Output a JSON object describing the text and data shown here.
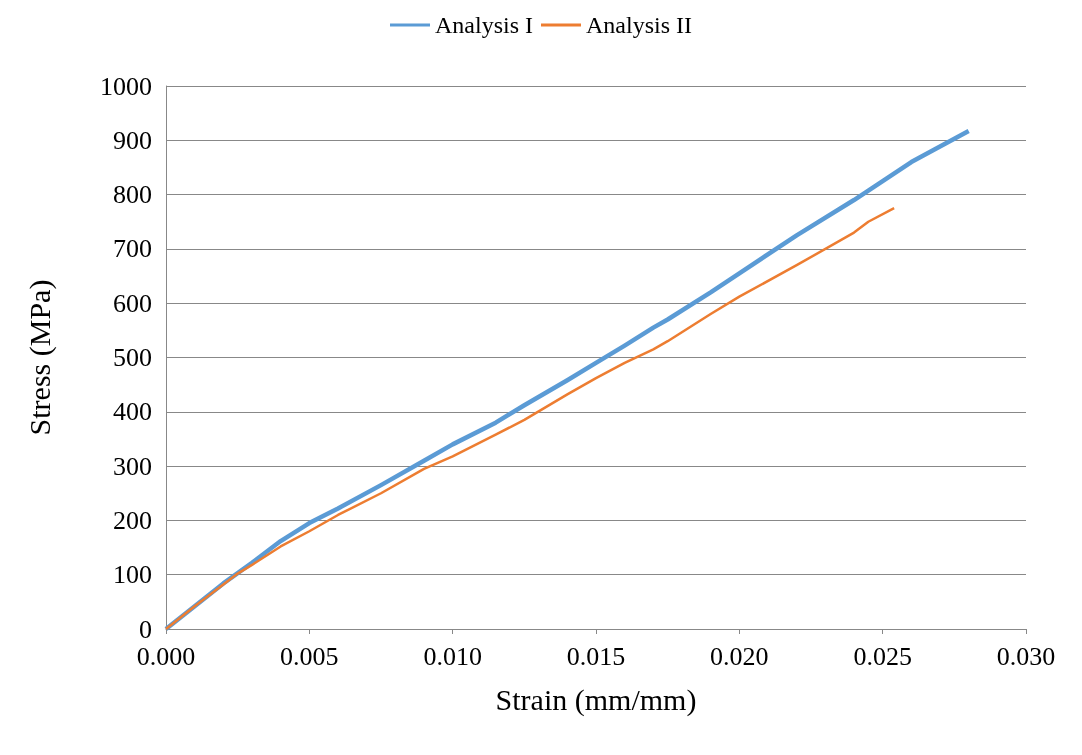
{
  "chart_data": {
    "type": "line",
    "xlabel": "Strain (mm/mm)",
    "ylabel": "Stress (MPa)",
    "xlim": [
      0,
      0.03
    ],
    "ylim": [
      0,
      1000
    ],
    "xticks": [
      {
        "value": 0,
        "label": "0.000"
      },
      {
        "value": 0.005,
        "label": "0.005"
      },
      {
        "value": 0.01,
        "label": "0.010"
      },
      {
        "value": 0.015,
        "label": "0.015"
      },
      {
        "value": 0.02,
        "label": "0.020"
      },
      {
        "value": 0.025,
        "label": "0.025"
      },
      {
        "value": 0.03,
        "label": "0.030"
      }
    ],
    "yticks": [
      0,
      100,
      200,
      300,
      400,
      500,
      600,
      700,
      800,
      900,
      1000
    ],
    "grid": "y",
    "legend": "top",
    "marker": "none",
    "line_style": "solid",
    "series": [
      {
        "name": "Analysis I",
        "color": "#5b9bd5",
        "x": [
          0,
          0.001,
          0.002,
          0.0025,
          0.003,
          0.004,
          0.005,
          0.006,
          0.0075,
          0.009,
          0.01,
          0.0115,
          0.0125,
          0.014,
          0.015,
          0.016,
          0.017,
          0.0175,
          0.019,
          0.02,
          0.022,
          0.024,
          0.025,
          0.026,
          0.028
        ],
        "values": [
          0,
          42,
          84,
          103,
          122,
          162,
          195,
          222,
          265,
          310,
          340,
          380,
          412,
          458,
          490,
          522,
          555,
          570,
          620,
          655,
          725,
          790,
          825,
          860,
          917
        ]
      },
      {
        "name": "Analysis II",
        "color": "#ed7d31",
        "x": [
          0,
          0.001,
          0.002,
          0.0025,
          0.003,
          0.004,
          0.005,
          0.006,
          0.0075,
          0.009,
          0.01,
          0.0115,
          0.0125,
          0.014,
          0.015,
          0.016,
          0.017,
          0.0175,
          0.019,
          0.02,
          0.022,
          0.024,
          0.0245,
          0.0254
        ],
        "values": [
          0,
          42,
          82,
          102,
          118,
          152,
          180,
          210,
          250,
          295,
          318,
          358,
          385,
          432,
          462,
          490,
          515,
          530,
          580,
          612,
          670,
          730,
          750,
          775
        ]
      }
    ]
  }
}
